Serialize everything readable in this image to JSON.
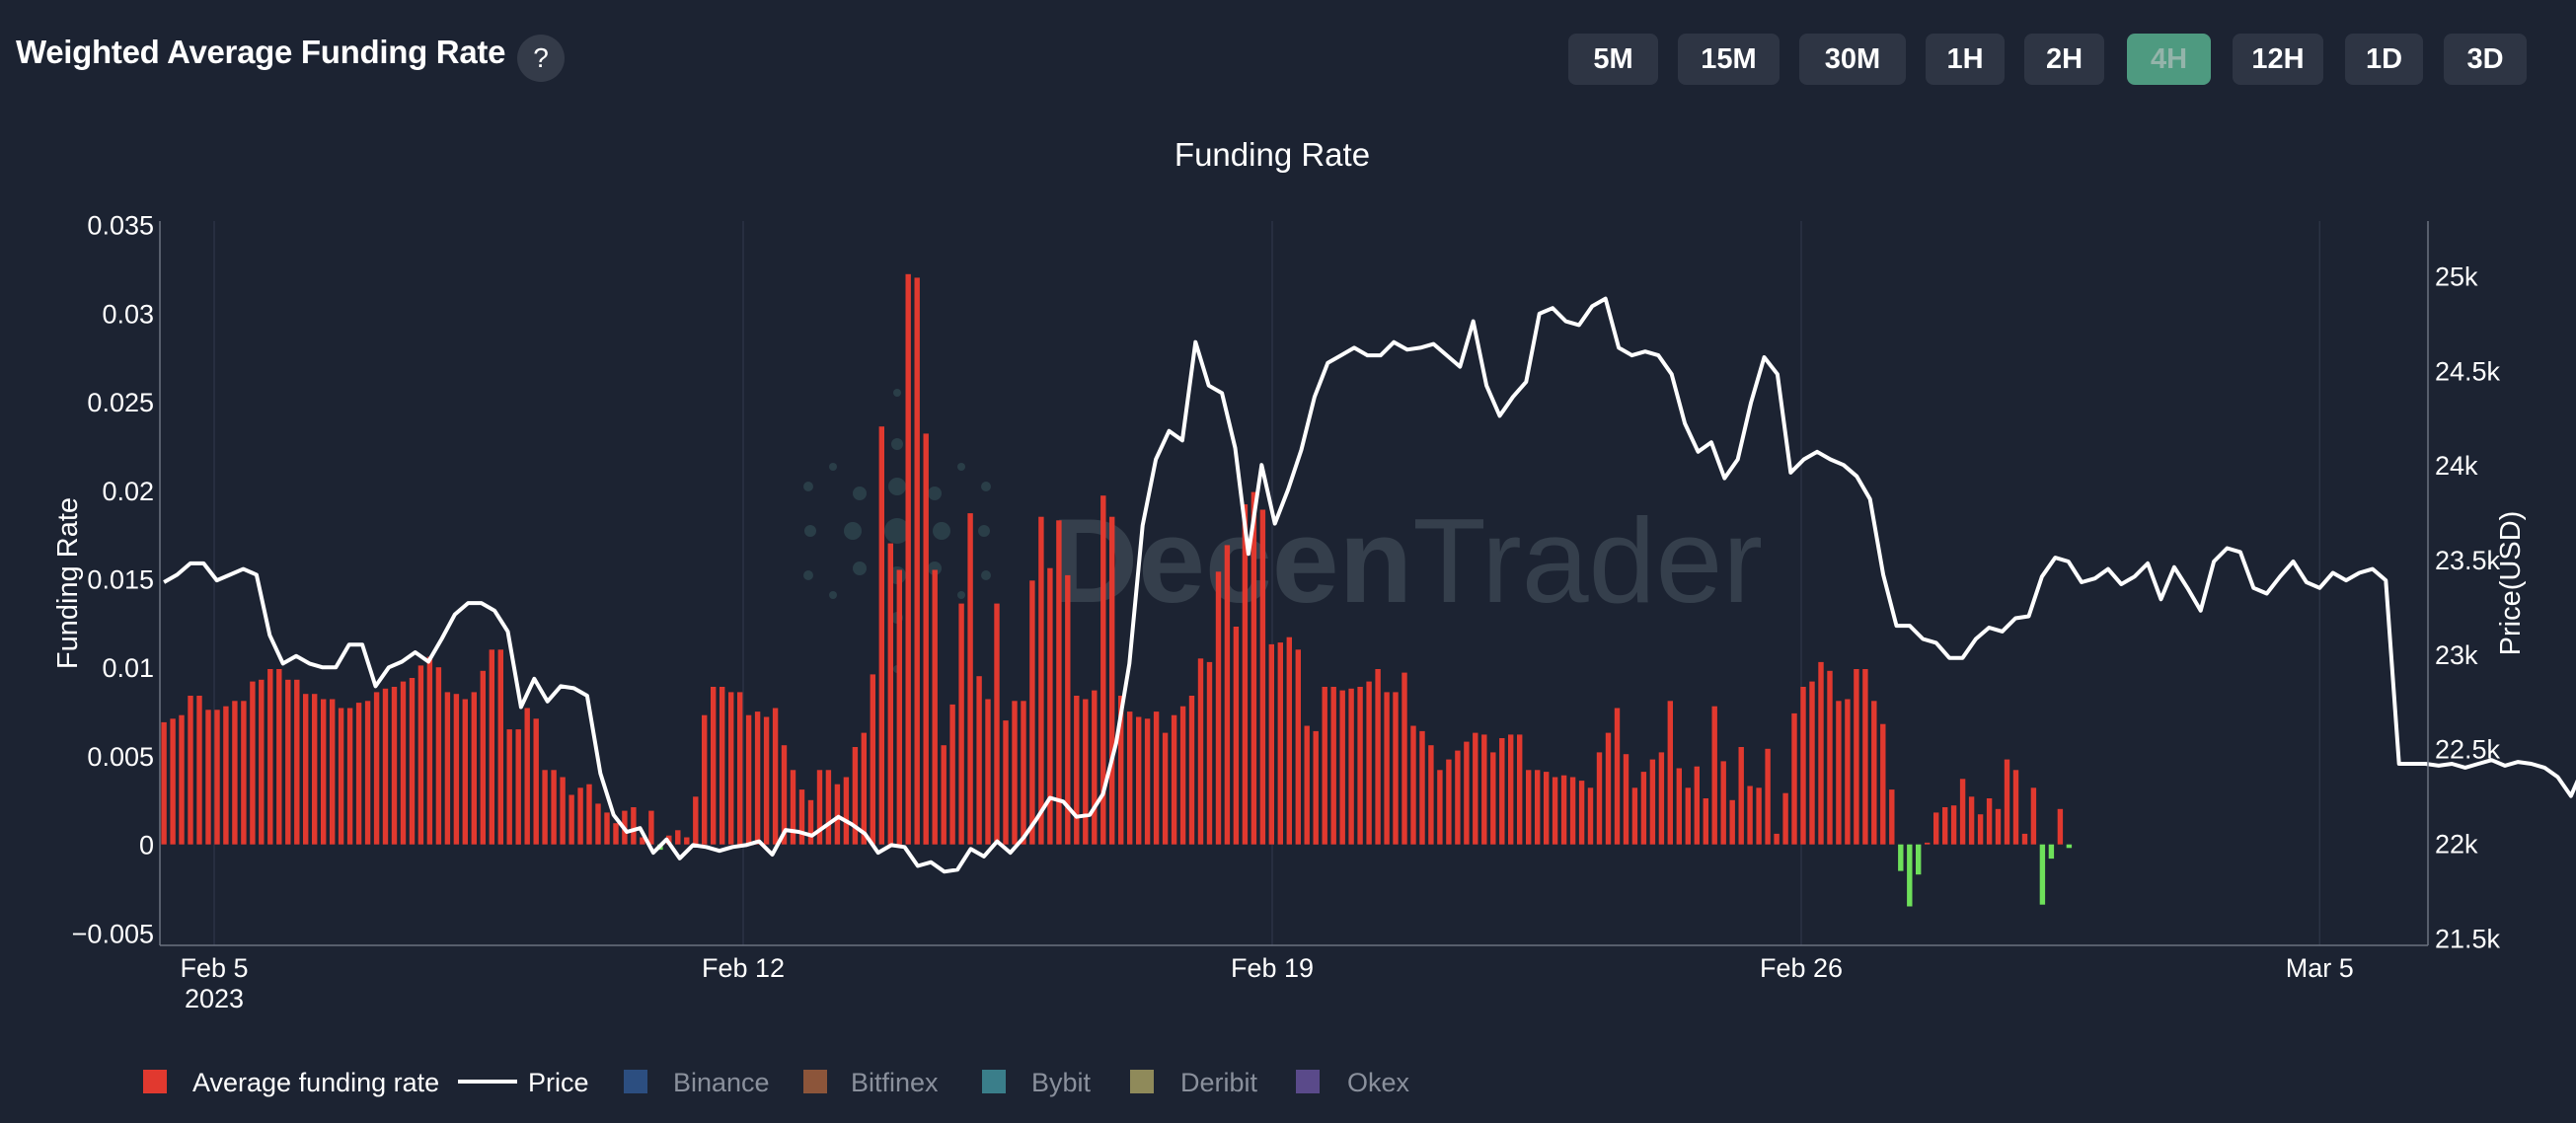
{
  "header": {
    "title": "Weighted Average Funding Rate",
    "help_label": "?"
  },
  "timeframes": [
    {
      "label": "5M",
      "active": false
    },
    {
      "label": "15M",
      "active": false
    },
    {
      "label": "30M",
      "active": false
    },
    {
      "label": "1H",
      "active": false
    },
    {
      "label": "2H",
      "active": false
    },
    {
      "label": "4H",
      "active": true
    },
    {
      "label": "12H",
      "active": false
    },
    {
      "label": "1D",
      "active": false
    },
    {
      "label": "3D",
      "active": false
    }
  ],
  "watermark": {
    "text_a": "Decen",
    "text_b": "Trader"
  },
  "colors": {
    "background": "#1c2332",
    "positive_bar": "#e1392f",
    "negative_bar": "#6ee05a",
    "price_line": "#ffffff",
    "active_button": "#4e9a80"
  },
  "chart_data": {
    "type": "bar",
    "title": "Funding Rate",
    "ylabel": "Funding Rate",
    "y2label": "Price(USD)",
    "ylim": [
      -0.0057,
      0.0352
    ],
    "y2lim": [
      21460,
      25290
    ],
    "xlim_days": [
      -0.55,
      42.6
    ],
    "yticks": [
      {
        "value": -0.005,
        "label": "−0.005"
      },
      {
        "value": 0,
        "label": "0"
      },
      {
        "value": 0.005,
        "label": "0.005"
      },
      {
        "value": 0.01,
        "label": "0.01"
      },
      {
        "value": 0.015,
        "label": "0.015"
      },
      {
        "value": 0.02,
        "label": "0.02"
      },
      {
        "value": 0.025,
        "label": "0.025"
      },
      {
        "value": 0.03,
        "label": "0.03"
      },
      {
        "value": 0.035,
        "label": "0.035"
      }
    ],
    "y2ticks": [
      {
        "value": 21500,
        "label": "21.5k"
      },
      {
        "value": 22000,
        "label": "22k"
      },
      {
        "value": 22500,
        "label": "22.5k"
      },
      {
        "value": 23000,
        "label": "23k"
      },
      {
        "value": 23500,
        "label": "23.5k"
      },
      {
        "value": 24000,
        "label": "24k"
      },
      {
        "value": 24500,
        "label": "24.5k"
      },
      {
        "value": 25000,
        "label": "25k"
      }
    ],
    "xticks": [
      {
        "day": 0,
        "label": "Feb 5",
        "sub": "2023"
      },
      {
        "day": 10,
        "label": "Feb 12",
        "sub": ""
      },
      {
        "day": 20,
        "label": "Feb 19",
        "sub": ""
      },
      {
        "day": 30,
        "label": "Feb 26",
        "sub": ""
      },
      {
        "day": 39.8,
        "label": "Mar 5",
        "sub": ""
      }
    ],
    "funding_x_start_day": -0.95,
    "funding_interval_days": 0.1675,
    "funding_rate": [
      0.0069,
      0.0071,
      0.0073,
      0.0084,
      0.0084,
      0.0076,
      0.0076,
      0.0078,
      0.0081,
      0.0081,
      0.0092,
      0.0093,
      0.0099,
      0.0099,
      0.0093,
      0.0093,
      0.0085,
      0.0085,
      0.0082,
      0.0082,
      0.0077,
      0.0077,
      0.008,
      0.0081,
      0.0086,
      0.0088,
      0.0089,
      0.0092,
      0.0094,
      0.0101,
      0.0106,
      0.01,
      0.0086,
      0.0085,
      0.0082,
      0.0086,
      0.0098,
      0.011,
      0.011,
      0.0065,
      0.0065,
      0.0077,
      0.0071,
      0.0042,
      0.0042,
      0.0038,
      0.0028,
      0.0032,
      0.0034,
      0.0023,
      0.0018,
      0.0012,
      0.0019,
      0.0021,
      0.0004,
      0.0019,
      -0.0003,
      0.0005,
      0.0008,
      0.0004,
      0.0027,
      0.0073,
      0.0089,
      0.0089,
      0.0086,
      0.0086,
      0.0073,
      0.0075,
      0.0072,
      0.0077,
      0.0056,
      0.0042,
      0.0031,
      0.0025,
      0.0042,
      0.0042,
      0.0034,
      0.0038,
      0.0055,
      0.0063,
      0.0096,
      0.0236,
      0.017,
      0.0155,
      0.0322,
      0.032,
      0.0232,
      0.0155,
      0.0056,
      0.0079,
      0.0136,
      0.0187,
      0.0095,
      0.0082,
      0.0136,
      0.007,
      0.0081,
      0.0081,
      0.0149,
      0.0185,
      0.0156,
      0.0183,
      0.0152,
      0.0084,
      0.0082,
      0.0087,
      0.0197,
      0.0185,
      0.0084,
      0.0075,
      0.0072,
      0.0071,
      0.0075,
      0.0063,
      0.0073,
      0.0078,
      0.0084,
      0.0105,
      0.0103,
      0.0154,
      0.0169,
      0.0123,
      0.0192,
      0.0199,
      0.0189,
      0.0113,
      0.0114,
      0.0117,
      0.011,
      0.0067,
      0.0064,
      0.0089,
      0.0089,
      0.0087,
      0.0088,
      0.0089,
      0.0092,
      0.0099,
      0.0086,
      0.0086,
      0.0097,
      0.0067,
      0.0064,
      0.0056,
      0.0042,
      0.0048,
      0.0053,
      0.0058,
      0.0063,
      0.0062,
      0.0052,
      0.006,
      0.0062,
      0.0062,
      0.0042,
      0.0042,
      0.0041,
      0.0038,
      0.0039,
      0.0038,
      0.0036,
      0.0032,
      0.0052,
      0.0063,
      0.0077,
      0.0051,
      0.0032,
      0.0041,
      0.0048,
      0.0052,
      0.0081,
      0.0043,
      0.0032,
      0.0044,
      0.0026,
      0.0078,
      0.0047,
      0.0025,
      0.0055,
      0.0033,
      0.0032,
      0.0054,
      0.0006,
      0.0029,
      0.0074,
      0.0089,
      0.0092,
      0.0103,
      0.0098,
      0.0081,
      0.0082,
      0.0099,
      0.0099,
      0.0081,
      0.0068,
      0.0031,
      -0.0015,
      -0.0035,
      -0.0017,
      0.0001,
      0.0018,
      0.0021,
      0.0022,
      0.0037,
      0.0027,
      0.0017,
      0.0026,
      0.002,
      0.0048,
      0.0042,
      0.0006,
      0.0032,
      -0.0034,
      -0.0008,
      0.002,
      -0.0002
    ],
    "price_x_start_day": -0.95,
    "price_interval_days": 0.25,
    "price": [
      23380,
      23420,
      23480,
      23480,
      23390,
      23420,
      23450,
      23420,
      23100,
      22950,
      22990,
      22950,
      22930,
      22930,
      23050,
      23050,
      22830,
      22930,
      22960,
      23010,
      22960,
      23080,
      23210,
      23270,
      23270,
      23230,
      23120,
      22720,
      22870,
      22750,
      22830,
      22820,
      22780,
      22370,
      22150,
      22060,
      22080,
      21950,
      22020,
      21920,
      21990,
      21980,
      21960,
      21980,
      21990,
      22010,
      21940,
      22070,
      22060,
      22040,
      22090,
      22140,
      22100,
      22050,
      21950,
      21990,
      21980,
      21880,
      21900,
      21850,
      21860,
      21970,
      21930,
      22010,
      21950,
      22030,
      22130,
      22240,
      22220,
      22140,
      22150,
      22260,
      22530,
      22950,
      23680,
      24030,
      24180,
      24130,
      24650,
      24420,
      24380,
      24090,
      23530,
      24000,
      23690,
      23870,
      24080,
      24360,
      24540,
      24580,
      24620,
      24580,
      24580,
      24650,
      24610,
      24620,
      24640,
      24580,
      24520,
      24760,
      24420,
      24260,
      24360,
      24440,
      24800,
      24830,
      24760,
      24740,
      24840,
      24880,
      24620,
      24580,
      24600,
      24580,
      24480,
      24220,
      24070,
      24120,
      23930,
      24030,
      24330,
      24570,
      24480,
      23960,
      24030,
      24070,
      24030,
      24000,
      23940,
      23820,
      23420,
      23150,
      23150,
      23080,
      23060,
      22980,
      22980,
      23080,
      23140,
      23120,
      23190,
      23200,
      23410,
      23510,
      23490,
      23380,
      23400,
      23450,
      23370,
      23410,
      23480,
      23290,
      23460,
      23350,
      23230,
      23490,
      23560,
      23540,
      23350,
      23320,
      23410,
      23490,
      23380,
      23350,
      23430,
      23390,
      23430,
      23450,
      23390,
      22420,
      22420,
      22420,
      22410,
      22420,
      22400,
      22420,
      22440,
      22410,
      22430,
      22420,
      22400,
      22350,
      22250,
      22410,
      22370,
      22380,
      22360,
      22430,
      22400,
      22430,
      22410,
      22390
    ]
  },
  "legend": [
    {
      "label": "Average funding rate",
      "color": "#e1392f",
      "kind": "box",
      "active": true
    },
    {
      "label": "Price",
      "color": "#ffffff",
      "kind": "line",
      "active": true
    },
    {
      "label": "Binance",
      "color": "#2c4e80",
      "kind": "box",
      "active": false
    },
    {
      "label": "Bitfinex",
      "color": "#8c553a",
      "kind": "box",
      "active": false
    },
    {
      "label": "Bybit",
      "color": "#3a7e8a",
      "kind": "box",
      "active": false
    },
    {
      "label": "Deribit",
      "color": "#8f8a5a",
      "kind": "box",
      "active": false
    },
    {
      "label": "Okex",
      "color": "#5a4a8a",
      "kind": "box",
      "active": false
    }
  ]
}
